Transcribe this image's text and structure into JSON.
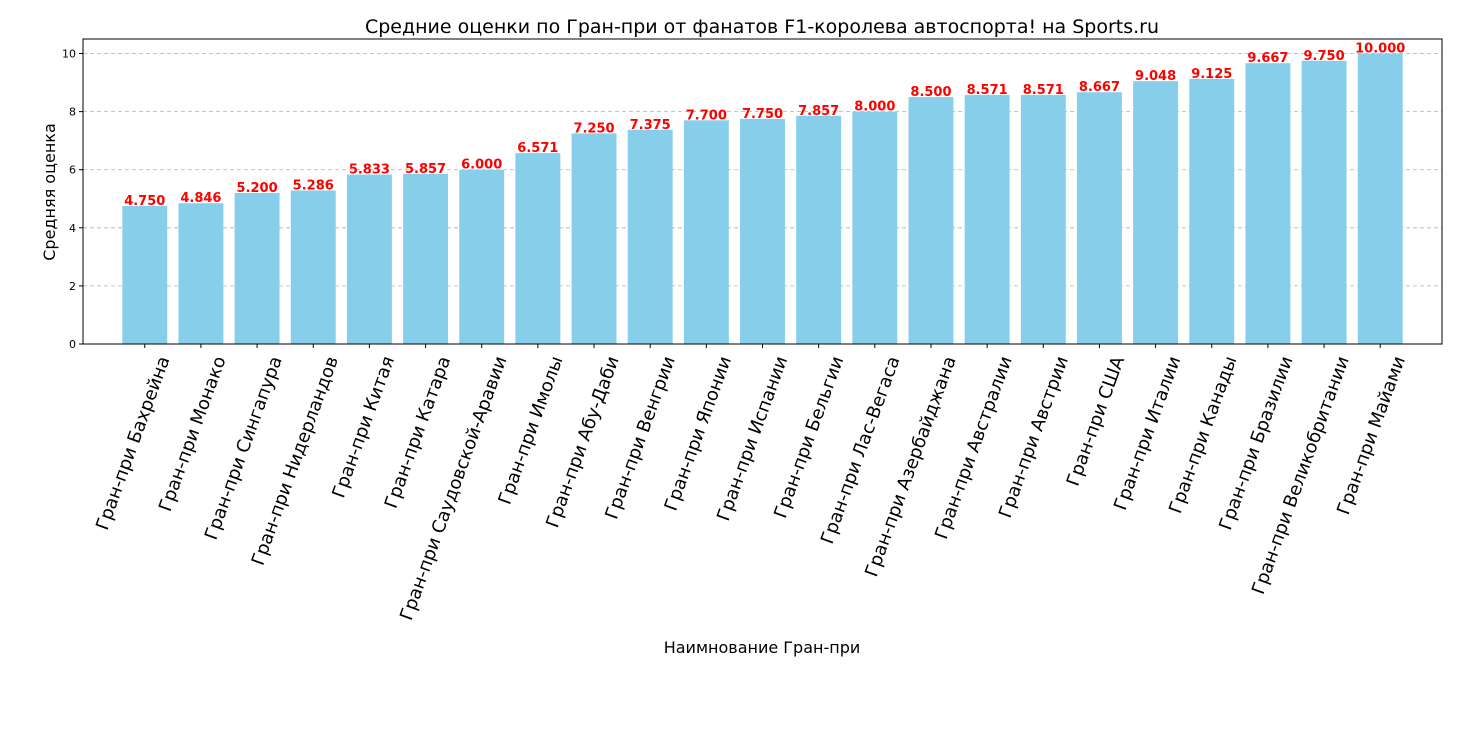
{
  "chart_data": {
    "type": "bar",
    "title": "Средние оценки по Гран-при от фанатов F1-королева автоспорта! на Sports.ru",
    "xlabel": "Наимнование Гран-при",
    "ylabel": "Средняя оценка",
    "ylim": [
      0,
      10.5
    ],
    "yticks": [
      "0",
      "2",
      "4",
      "6",
      "8",
      "10"
    ],
    "grid": "y",
    "categories": [
      "Гран-при  Бахрейна",
      "Гран-при  Монако",
      "Гран-при  Сингапура",
      "Гран-при  Нидерландов",
      "Гран-при  Китая",
      "Гран-при  Катара",
      "Гран-при  Саудовской-Аравии",
      "Гран-при  Имолы",
      "Гран-при  Абу-Даби",
      "Гран-при  Венгрии",
      "Гран-при  Японии",
      "Гран-при  Испании",
      "Гран-при  Бельгии",
      "Гран-при  Лас-Вегаса",
      "Гран-при  Азербайджана",
      "Гран-при  Австралии",
      "Гран-при  Австрии",
      "Гран-при  США",
      "Гран-при  Италии",
      "Гран-при  Канады",
      "Гран-при  Бразилии",
      "Гран-при  Великобритании",
      "Гран-при  Майами"
    ],
    "values": [
      4.75,
      4.846,
      5.2,
      5.286,
      5.833,
      5.857,
      6.0,
      6.571,
      7.25,
      7.375,
      7.7,
      7.75,
      7.857,
      8.0,
      8.5,
      8.571,
      8.571,
      8.667,
      9.048,
      9.125,
      9.667,
      9.75,
      10.0
    ],
    "value_labels": [
      "4.750",
      "4.846",
      "5.200",
      "5.286",
      "5.833",
      "5.857",
      "6.000",
      "6.571",
      "7.250",
      "7.375",
      "7.700",
      "7.750",
      "7.857",
      "8.000",
      "8.500",
      "8.571",
      "8.571",
      "8.667",
      "9.048",
      "9.125",
      "9.667",
      "9.750",
      "10.000"
    ],
    "bar_color": "#87ceeb",
    "label_color": "#ff0000"
  }
}
